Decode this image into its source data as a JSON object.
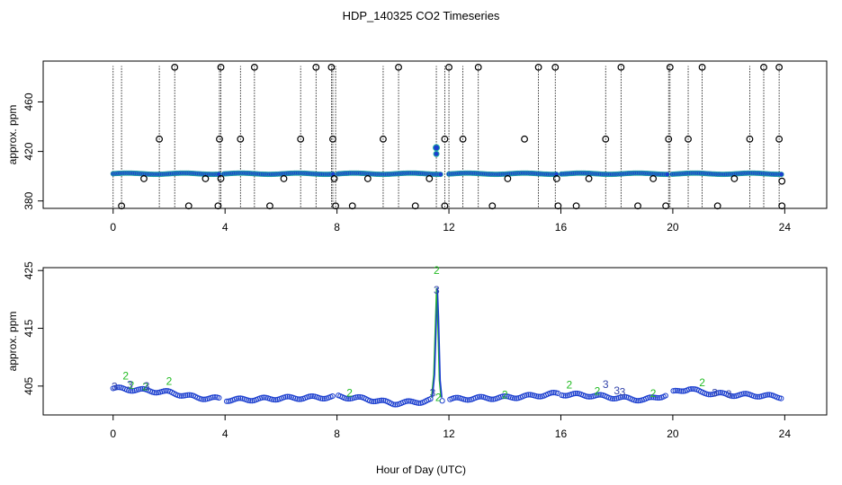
{
  "title": "HDP_140325  CO2 Timeseries",
  "xlabel": "Hour of Day (UTC)",
  "colors": {
    "outlier": "#000000",
    "flag2": "#22bb22",
    "flag3": "#3344aa",
    "base": "#1c3fcf",
    "base_edge": "#24b0a0"
  },
  "chart_data": [
    {
      "type": "scatter",
      "title": "",
      "xlabel": "",
      "ylabel": "approx. ppm",
      "xlim": [
        -2.5,
        25.5
      ],
      "ylim": [
        374,
        493
      ],
      "xticks": [
        0,
        4,
        8,
        12,
        16,
        20,
        24
      ],
      "yticks": [
        380,
        420,
        460
      ],
      "ytick_labels": [
        "380",
        "420",
        "460"
      ],
      "xtick_labels": [
        "0",
        "4",
        "8",
        "12",
        "16",
        "20",
        "24"
      ],
      "baseline": 402,
      "outliers": {
        "high": [
          [
            2.2,
            488
          ],
          [
            3.85,
            488
          ],
          [
            5.05,
            488
          ],
          [
            7.25,
            488
          ],
          [
            7.8,
            488
          ],
          [
            10.2,
            488
          ],
          [
            12.0,
            488
          ],
          [
            13.05,
            488
          ],
          [
            15.2,
            488
          ],
          [
            15.8,
            488
          ],
          [
            18.15,
            488
          ],
          [
            19.9,
            488
          ],
          [
            21.05,
            488
          ],
          [
            23.25,
            488
          ],
          [
            23.8,
            488
          ]
        ],
        "mid": [
          [
            1.65,
            430
          ],
          [
            3.8,
            430
          ],
          [
            4.55,
            430
          ],
          [
            6.7,
            430
          ],
          [
            7.85,
            430
          ],
          [
            9.65,
            430
          ],
          [
            11.85,
            430
          ],
          [
            12.5,
            430
          ],
          [
            14.7,
            430
          ],
          [
            17.6,
            430
          ],
          [
            19.85,
            430
          ],
          [
            20.55,
            430
          ],
          [
            22.75,
            430
          ],
          [
            23.8,
            430
          ]
        ],
        "low": [
          [
            0.3,
            376
          ],
          [
            2.7,
            376
          ],
          [
            3.75,
            376
          ],
          [
            5.6,
            376
          ],
          [
            7.95,
            376
          ],
          [
            8.55,
            376
          ],
          [
            10.8,
            376
          ],
          [
            11.85,
            376
          ],
          [
            13.55,
            376
          ],
          [
            15.9,
            376
          ],
          [
            16.55,
            376
          ],
          [
            18.75,
            376
          ],
          [
            19.75,
            376
          ],
          [
            21.6,
            376
          ],
          [
            23.9,
            376
          ]
        ],
        "near": [
          [
            1.1,
            398
          ],
          [
            3.3,
            398
          ],
          [
            3.85,
            398
          ],
          [
            6.1,
            398
          ],
          [
            7.9,
            398
          ],
          [
            9.1,
            398
          ],
          [
            11.3,
            398
          ],
          [
            14.1,
            398
          ],
          [
            15.85,
            398
          ],
          [
            17.0,
            398
          ],
          [
            19.3,
            398
          ],
          [
            22.2,
            398
          ],
          [
            23.9,
            396
          ]
        ]
      },
      "stem_x": [
        0.0,
        0.3,
        1.65,
        2.2,
        3.8,
        3.85,
        4.55,
        5.05,
        6.7,
        7.25,
        7.8,
        7.85,
        7.95,
        9.65,
        10.2,
        11.55,
        11.85,
        12.0,
        12.5,
        13.05,
        15.2,
        15.8,
        17.6,
        18.15,
        19.85,
        19.9,
        20.55,
        21.05,
        22.75,
        23.25,
        23.8
      ],
      "spike": {
        "x": 11.55,
        "y": 423
      }
    },
    {
      "type": "scatter",
      "title": "",
      "xlabel": "Hour of Day (UTC)",
      "ylabel": "approx. ppm",
      "xlim": [
        -2.5,
        25.5
      ],
      "ylim": [
        400,
        425.5
      ],
      "xticks": [
        0,
        4,
        8,
        12,
        16,
        20,
        24
      ],
      "yticks": [
        405,
        415,
        425
      ],
      "ytick_labels": [
        "405",
        "415",
        "425"
      ],
      "xtick_labels": [
        "0",
        "4",
        "8",
        "12",
        "16",
        "20",
        "24"
      ],
      "profile": [
        [
          0.0,
          404.6
        ],
        [
          1.0,
          404.3
        ],
        [
          2.0,
          403.9
        ],
        [
          3.0,
          403.0
        ],
        [
          3.8,
          402.8
        ],
        [
          4.0,
          402.6
        ],
        [
          5.0,
          402.7
        ],
        [
          6.0,
          402.9
        ],
        [
          7.0,
          403.0
        ],
        [
          7.9,
          403.1
        ],
        [
          8.0,
          403.2
        ],
        [
          9.0,
          402.8
        ],
        [
          10.0,
          402.0
        ],
        [
          11.0,
          402.3
        ],
        [
          11.4,
          402.6
        ],
        [
          12.0,
          402.7
        ],
        [
          13.0,
          402.9
        ],
        [
          14.0,
          403.0
        ],
        [
          15.0,
          403.3
        ],
        [
          15.9,
          403.7
        ],
        [
          16.0,
          403.6
        ],
        [
          17.0,
          403.4
        ],
        [
          18.0,
          403.0
        ],
        [
          19.0,
          402.6
        ],
        [
          19.8,
          403.5
        ],
        [
          20.0,
          403.9
        ],
        [
          20.6,
          404.6
        ],
        [
          21.0,
          403.9
        ],
        [
          22.0,
          403.5
        ],
        [
          23.0,
          403.4
        ],
        [
          23.9,
          403.1
        ]
      ],
      "gaps": [
        [
          3.8,
          4.0
        ],
        [
          7.9,
          8.0
        ],
        [
          11.8,
          12.0
        ],
        [
          15.9,
          16.0
        ],
        [
          19.8,
          20.0
        ]
      ],
      "spike": [
        [
          11.4,
          403.0
        ],
        [
          11.48,
          407.0
        ],
        [
          11.54,
          416.0
        ],
        [
          11.58,
          422.0
        ],
        [
          11.62,
          417.0
        ],
        [
          11.68,
          406.0
        ],
        [
          11.74,
          403.0
        ]
      ],
      "flag2_labels": [
        [
          0.45,
          406.8
        ],
        [
          0.65,
          405.1
        ],
        [
          1.15,
          404.9
        ],
        [
          2.0,
          405.8
        ],
        [
          8.45,
          403.8
        ],
        [
          11.56,
          425.0
        ],
        [
          16.3,
          405.2
        ],
        [
          17.3,
          404.1
        ],
        [
          19.3,
          403.7
        ],
        [
          21.05,
          405.6
        ],
        [
          11.62,
          403.0
        ],
        [
          14.0,
          403.5
        ]
      ],
      "flag3_labels": [
        [
          0.05,
          404.9
        ],
        [
          0.6,
          405.2
        ],
        [
          1.2,
          405.0
        ],
        [
          11.56,
          421.6
        ],
        [
          11.42,
          403.8
        ],
        [
          17.6,
          405.3
        ],
        [
          18.0,
          404.2
        ],
        [
          18.2,
          404.0
        ],
        [
          21.5,
          403.8
        ],
        [
          22.0,
          403.6
        ]
      ]
    }
  ]
}
